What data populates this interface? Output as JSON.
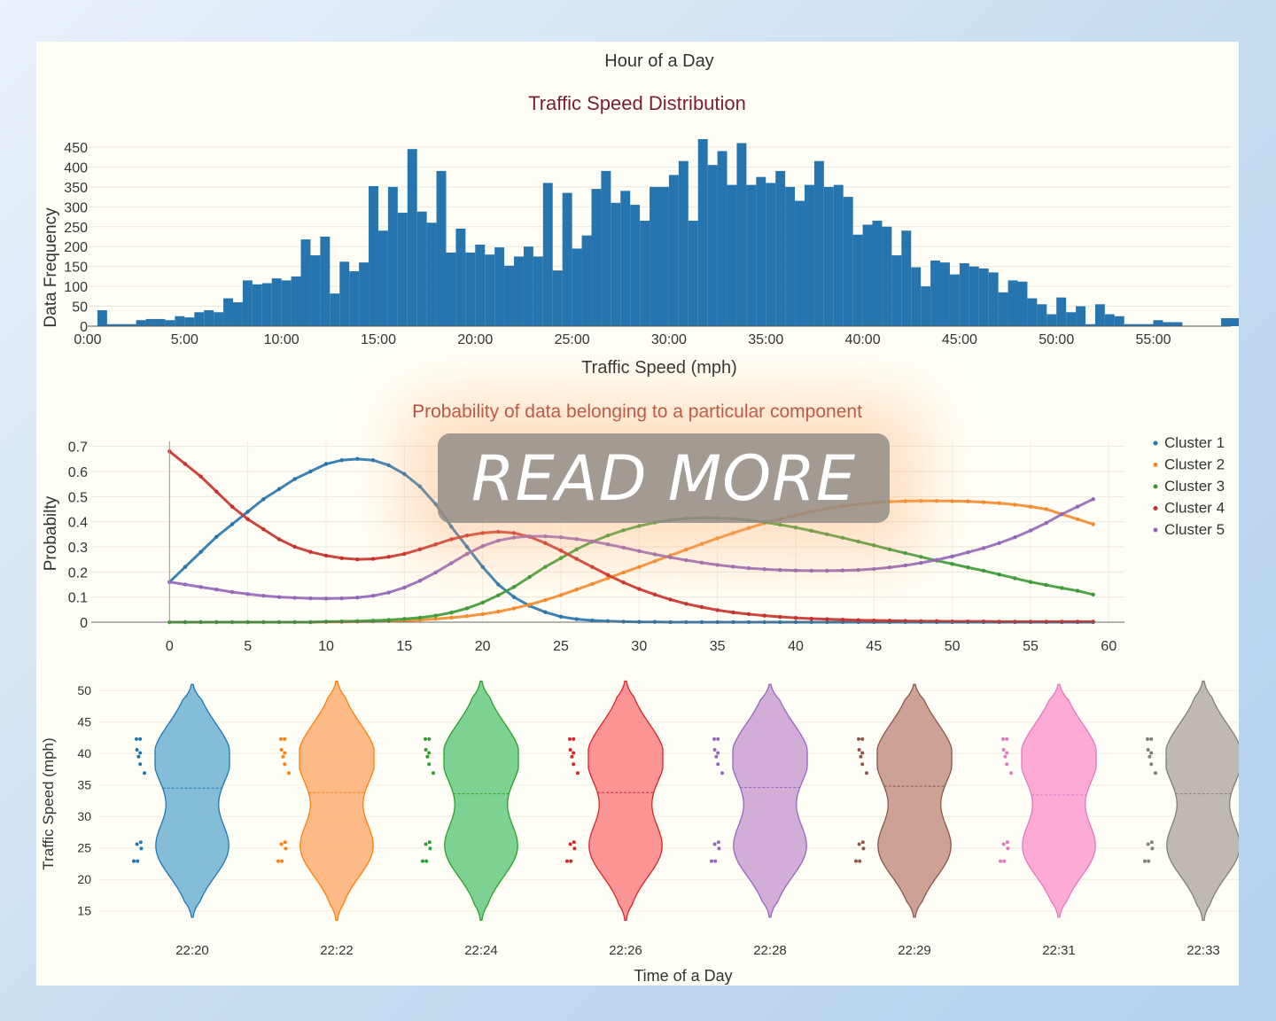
{
  "colors": {
    "background": "#fffef6",
    "hist": "#2775ae",
    "clusters": [
      "#2775ae",
      "#f58a2a",
      "#3b9a37",
      "#c8302a",
      "#9366b8",
      "#8a5548",
      "#e77ac0",
      "#8e8680"
    ],
    "violin_fills": [
      "#7cb9d6",
      "#fdb67f",
      "#76d08d",
      "#fb8f8f",
      "#cfa9d6",
      "#c99c90",
      "#fda6d3",
      "#bdb5ad"
    ],
    "violin_lines": [
      "#1f77b4",
      "#ff7f0e",
      "#2ca02c",
      "#d62728",
      "#9467bd",
      "#8c564b",
      "#e377c2",
      "#7f7f7f"
    ]
  },
  "overlay": {
    "read_more_label": "READ MORE"
  },
  "chart_data": [
    {
      "type": "bar",
      "title": "Traffic Speed Distribution",
      "top_label": "Hour of a Day",
      "xlabel": "Traffic Speed (mph)",
      "ylabel": "Data Frequency",
      "xlim": [
        0,
        59
      ],
      "ylim": [
        0,
        470
      ],
      "xticks": [
        0,
        5,
        10,
        15,
        20,
        25,
        30,
        35,
        40,
        45,
        50,
        55
      ],
      "xtick_labels": [
        "0:00",
        "5:00",
        "10:00",
        "15:00",
        "20:00",
        "25:00",
        "30:00",
        "35:00",
        "40:00",
        "45:00",
        "50:00",
        "55:00"
      ],
      "yticks": [
        0,
        50,
        100,
        150,
        200,
        250,
        300,
        350,
        400,
        450
      ],
      "bin_width": 0.5,
      "values": [
        0,
        40,
        5,
        5,
        5,
        15,
        18,
        18,
        15,
        25,
        22,
        35,
        40,
        35,
        70,
        60,
        115,
        105,
        108,
        120,
        115,
        125,
        218,
        178,
        225,
        82,
        162,
        138,
        160,
        352,
        240,
        350,
        285,
        445,
        288,
        260,
        390,
        185,
        245,
        185,
        205,
        180,
        198,
        152,
        175,
        200,
        175,
        360,
        140,
        335,
        195,
        228,
        345,
        390,
        310,
        340,
        305,
        265,
        350,
        350,
        380,
        415,
        265,
        470,
        405,
        440,
        355,
        460,
        355,
        375,
        360,
        390,
        350,
        315,
        355,
        415,
        350,
        355,
        325,
        230,
        255,
        265,
        250,
        178,
        240,
        148,
        100,
        165,
        160,
        130,
        158,
        150,
        145,
        135,
        85,
        115,
        112,
        70,
        55,
        30,
        72,
        35,
        50,
        5,
        55,
        30,
        25,
        5,
        5,
        5,
        15,
        10,
        10,
        0,
        0,
        0,
        0,
        20,
        20,
        0,
        18
      ]
    },
    {
      "type": "scatter",
      "title": "Probability of data belonging to a particular component",
      "xlabel": "",
      "ylabel": "Probabilty",
      "xlim": [
        -5,
        61
      ],
      "ylim": [
        0,
        0.72
      ],
      "xticks": [
        0,
        5,
        10,
        15,
        20,
        25,
        30,
        35,
        40,
        45,
        50,
        55,
        60
      ],
      "yticks": [
        0,
        0.1,
        0.2,
        0.3,
        0.4,
        0.5,
        0.6,
        0.7
      ],
      "legend_position": "top-right",
      "series": [
        {
          "name": "Cluster 1",
          "x": [
            0,
            1,
            2,
            3,
            4,
            5,
            6,
            7,
            8,
            9,
            10,
            11,
            12,
            13,
            14,
            15,
            16,
            17,
            18,
            19,
            20,
            21,
            22,
            23,
            24,
            25,
            26,
            27,
            28,
            29,
            30,
            31,
            32,
            33,
            34,
            35,
            36,
            37,
            38,
            39,
            40,
            41,
            42,
            43,
            44,
            45,
            46,
            47,
            48,
            49,
            50,
            51,
            52,
            53,
            54,
            55,
            56,
            57,
            58,
            59
          ],
          "y": [
            0.16,
            0.22,
            0.28,
            0.34,
            0.39,
            0.44,
            0.49,
            0.53,
            0.57,
            0.6,
            0.63,
            0.645,
            0.65,
            0.645,
            0.625,
            0.59,
            0.54,
            0.47,
            0.38,
            0.3,
            0.22,
            0.15,
            0.1,
            0.065,
            0.04,
            0.022,
            0.012,
            0.007,
            0.004,
            0.002,
            0.001,
            0.001,
            0,
            0,
            0,
            0,
            0,
            0,
            0,
            0,
            0,
            0,
            0,
            0,
            0,
            0,
            0,
            0,
            0,
            0,
            0,
            0,
            0,
            0,
            0,
            0,
            0,
            0,
            0,
            0
          ]
        },
        {
          "name": "Cluster 2",
          "x": [
            0,
            1,
            2,
            3,
            4,
            5,
            6,
            7,
            8,
            9,
            10,
            11,
            12,
            13,
            14,
            15,
            16,
            17,
            18,
            19,
            20,
            21,
            22,
            23,
            24,
            25,
            26,
            27,
            28,
            29,
            30,
            31,
            32,
            33,
            34,
            35,
            36,
            37,
            38,
            39,
            40,
            41,
            42,
            43,
            44,
            45,
            46,
            47,
            48,
            49,
            50,
            51,
            52,
            53,
            54,
            55,
            56,
            57,
            58,
            59
          ],
          "y": [
            0,
            0,
            0,
            0,
            0,
            0,
            0,
            0,
            0,
            0,
            0.001,
            0.001,
            0.002,
            0.003,
            0.004,
            0.006,
            0.009,
            0.013,
            0.018,
            0.024,
            0.032,
            0.042,
            0.055,
            0.07,
            0.088,
            0.108,
            0.13,
            0.152,
            0.175,
            0.198,
            0.22,
            0.243,
            0.266,
            0.289,
            0.312,
            0.334,
            0.355,
            0.375,
            0.394,
            0.411,
            0.426,
            0.44,
            0.452,
            0.462,
            0.47,
            0.476,
            0.48,
            0.482,
            0.483,
            0.483,
            0.482,
            0.481,
            0.478,
            0.474,
            0.468,
            0.46,
            0.45,
            0.43,
            0.41,
            0.39
          ]
        },
        {
          "name": "Cluster 3",
          "x": [
            0,
            1,
            2,
            3,
            4,
            5,
            6,
            7,
            8,
            9,
            10,
            11,
            12,
            13,
            14,
            15,
            16,
            17,
            18,
            19,
            20,
            21,
            22,
            23,
            24,
            25,
            26,
            27,
            28,
            29,
            30,
            31,
            32,
            33,
            34,
            35,
            36,
            37,
            38,
            39,
            40,
            41,
            42,
            43,
            44,
            45,
            46,
            47,
            48,
            49,
            50,
            51,
            52,
            53,
            54,
            55,
            56,
            57,
            58,
            59
          ],
          "y": [
            0,
            0,
            0,
            0,
            0,
            0,
            0,
            0,
            0,
            0,
            0.002,
            0.003,
            0.004,
            0.006,
            0.009,
            0.013,
            0.018,
            0.026,
            0.038,
            0.055,
            0.078,
            0.107,
            0.14,
            0.18,
            0.22,
            0.255,
            0.29,
            0.32,
            0.345,
            0.366,
            0.383,
            0.397,
            0.407,
            0.413,
            0.416,
            0.415,
            0.412,
            0.406,
            0.398,
            0.388,
            0.377,
            0.364,
            0.35,
            0.336,
            0.321,
            0.306,
            0.29,
            0.275,
            0.26,
            0.245,
            0.232,
            0.218,
            0.205,
            0.19,
            0.175,
            0.16,
            0.148,
            0.136,
            0.125,
            0.11
          ]
        },
        {
          "name": "Cluster 4",
          "x": [
            0,
            1,
            2,
            3,
            4,
            5,
            6,
            7,
            8,
            9,
            10,
            11,
            12,
            13,
            14,
            15,
            16,
            17,
            18,
            19,
            20,
            21,
            22,
            23,
            24,
            25,
            26,
            27,
            28,
            29,
            30,
            31,
            32,
            33,
            34,
            35,
            36,
            37,
            38,
            39,
            40,
            41,
            42,
            43,
            44,
            45,
            46,
            47,
            48,
            49,
            50,
            51,
            52,
            53,
            54,
            55,
            56,
            57,
            58,
            59
          ],
          "y": [
            0.68,
            0.63,
            0.58,
            0.52,
            0.46,
            0.41,
            0.37,
            0.33,
            0.3,
            0.28,
            0.265,
            0.255,
            0.25,
            0.252,
            0.26,
            0.272,
            0.29,
            0.31,
            0.33,
            0.345,
            0.355,
            0.36,
            0.355,
            0.34,
            0.315,
            0.285,
            0.252,
            0.22,
            0.188,
            0.158,
            0.132,
            0.11,
            0.09,
            0.073,
            0.06,
            0.048,
            0.039,
            0.032,
            0.026,
            0.021,
            0.017,
            0.014,
            0.012,
            0.01,
            0.008,
            0.007,
            0.006,
            0.005,
            0.004,
            0.004,
            0.003,
            0.003,
            0.003,
            0.002,
            0.002,
            0.002,
            0.002,
            0.002,
            0.002,
            0.002
          ]
        },
        {
          "name": "Cluster 5",
          "x": [
            0,
            1,
            2,
            3,
            4,
            5,
            6,
            7,
            8,
            9,
            10,
            11,
            12,
            13,
            14,
            15,
            16,
            17,
            18,
            19,
            20,
            21,
            22,
            23,
            24,
            25,
            26,
            27,
            28,
            29,
            30,
            31,
            32,
            33,
            34,
            35,
            36,
            37,
            38,
            39,
            40,
            41,
            42,
            43,
            44,
            45,
            46,
            47,
            48,
            49,
            50,
            51,
            52,
            53,
            54,
            55,
            56,
            57,
            58,
            59
          ],
          "y": [
            0.16,
            0.15,
            0.14,
            0.13,
            0.12,
            0.112,
            0.105,
            0.1,
            0.097,
            0.095,
            0.094,
            0.095,
            0.098,
            0.105,
            0.118,
            0.138,
            0.165,
            0.198,
            0.235,
            0.272,
            0.303,
            0.325,
            0.337,
            0.342,
            0.342,
            0.338,
            0.331,
            0.322,
            0.31,
            0.297,
            0.283,
            0.27,
            0.258,
            0.247,
            0.237,
            0.228,
            0.221,
            0.215,
            0.211,
            0.208,
            0.206,
            0.205,
            0.205,
            0.206,
            0.208,
            0.212,
            0.218,
            0.226,
            0.236,
            0.248,
            0.262,
            0.278,
            0.295,
            0.315,
            0.338,
            0.365,
            0.395,
            0.43,
            0.46,
            0.49
          ]
        }
      ]
    },
    {
      "type": "violin",
      "title": "",
      "xlabel": "Time of a Day",
      "ylabel": "Traffic Speed (mph)",
      "ylim": [
        12,
        52
      ],
      "yticks": [
        15,
        20,
        25,
        30,
        35,
        40,
        45,
        50
      ],
      "categories": [
        "22:20",
        "22:22",
        "22:24",
        "22:26",
        "22:28",
        "22:29",
        "22:31",
        "22:33"
      ],
      "ranges": [
        [
          14,
          51
        ],
        [
          13.5,
          51.5
        ],
        [
          13.5,
          51.5
        ],
        [
          13.5,
          51.5
        ],
        [
          14,
          51
        ],
        [
          14,
          51
        ],
        [
          14,
          51
        ],
        [
          13.5,
          51.5
        ]
      ],
      "medians": [
        34.5,
        33.8,
        33.6,
        33.8,
        34.6,
        34.8,
        33.4,
        33.6
      ],
      "points": [
        22.9,
        22.9,
        24.9,
        25.6,
        25.9,
        36.9,
        38.3,
        39.5,
        40.1,
        40.6,
        42.3,
        42.3
      ]
    }
  ]
}
